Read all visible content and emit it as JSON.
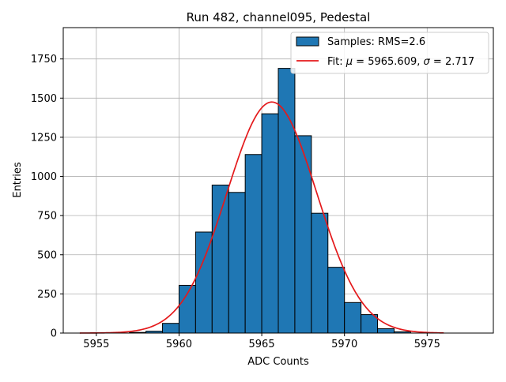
{
  "chart_data": {
    "type": "bar",
    "title": "Run 482, channel095, Pedestal",
    "xlabel": "ADC Counts",
    "ylabel": "Entries",
    "xlim": [
      5953,
      5979
    ],
    "ylim": [
      0,
      1950
    ],
    "x_ticks": [
      5955,
      5960,
      5965,
      5970,
      5975
    ],
    "y_ticks": [
      0,
      250,
      500,
      750,
      1000,
      1250,
      1500,
      1750
    ],
    "grid": true,
    "legend_position": "top-right",
    "histogram": {
      "name": "Samples: RMS=2.6",
      "color": "#1f77b4",
      "bin_edges": [
        5957,
        5958,
        5959,
        5960,
        5961,
        5962,
        5963,
        5964,
        5965,
        5966,
        5967,
        5968,
        5969,
        5970,
        5971,
        5972,
        5973,
        5974
      ],
      "counts": [
        4,
        12,
        62,
        305,
        645,
        945,
        898,
        1140,
        1400,
        1690,
        1260,
        765,
        420,
        195,
        118,
        28,
        8
      ]
    },
    "fit": {
      "name_prefix": "Fit: ",
      "mu_symbol": "μ",
      "sigma_symbol": "σ",
      "mu": 5965.609,
      "sigma": 2.717,
      "amplitude": 1475,
      "x_range": [
        5954,
        5976
      ],
      "color": "#e41a1c"
    }
  }
}
